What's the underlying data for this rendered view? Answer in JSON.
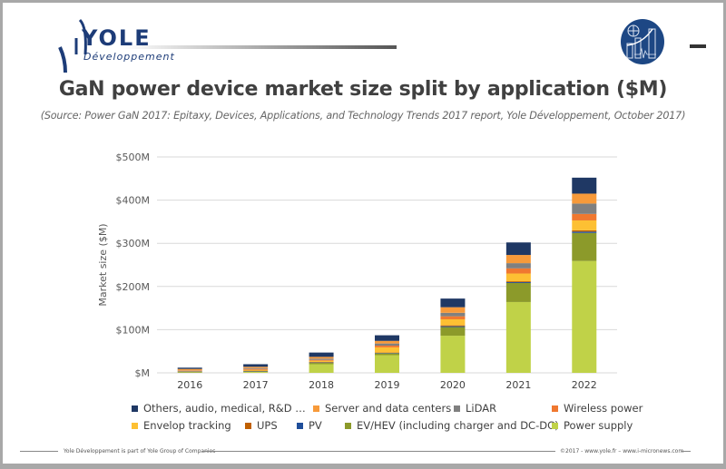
{
  "logo": {
    "name": "YOLE",
    "sub": "Développement"
  },
  "header": {
    "title": "GaN power device market size split by application ($M)",
    "subtitle": "(Source: Power GaN 2017: Epitaxy, Devices, Applications, and Technology Trends 2017 report, Yole Développement, October 2017)"
  },
  "footer": {
    "left": "Yole Développement is part of Yole Group of Companies",
    "right": "©2017 - www.yole.fr – www.i-micronews.com"
  },
  "chart_data": {
    "type": "bar",
    "stacked": true,
    "title": "GaN power device market size split by application ($M)",
    "ylabel": "Market size ($M)",
    "xlabel": "",
    "ylim": [
      0,
      500
    ],
    "yticks": [
      0,
      100,
      200,
      300,
      400,
      500
    ],
    "ytick_labels": [
      "$M",
      "$100M",
      "$200M",
      "$300M",
      "$400M",
      "$500M"
    ],
    "grid": true,
    "legend_position": "bottom",
    "categories": [
      "2016",
      "2017",
      "2018",
      "2019",
      "2020",
      "2021",
      "2022"
    ],
    "series": [
      {
        "name": "Power supply",
        "color": "#c0d248",
        "values": [
          1,
          2,
          20,
          41,
          86,
          164,
          259
        ]
      },
      {
        "name": "EV/HEV (including charger and DC-DC)",
        "color": "#8c9a2a",
        "values": [
          1,
          1,
          3,
          4,
          20,
          44,
          65
        ]
      },
      {
        "name": "PV",
        "color": "#1f4e9a",
        "values": [
          1,
          1,
          1,
          1,
          2,
          2,
          3
        ]
      },
      {
        "name": "UPS",
        "color": "#c06000",
        "values": [
          0.5,
          1,
          1,
          1,
          2,
          2,
          3
        ]
      },
      {
        "name": "Envelop tracking",
        "color": "#fdc033",
        "values": [
          1,
          2,
          3,
          12,
          14,
          18,
          23
        ]
      },
      {
        "name": "Wireless power",
        "color": "#f07830",
        "values": [
          1,
          2,
          2,
          4,
          7,
          12,
          15
        ]
      },
      {
        "name": "LiDAR",
        "color": "#808080",
        "values": [
          0.5,
          2,
          3,
          5,
          8,
          12,
          24
        ]
      },
      {
        "name": "Server and data centers",
        "color": "#f79a3a",
        "values": [
          3,
          3,
          4,
          6,
          13,
          19,
          23
        ]
      },
      {
        "name": "Others, audio, medical, R&D …",
        "color": "#1f3864",
        "values": [
          3,
          6,
          10,
          13,
          20,
          29,
          37
        ]
      }
    ]
  }
}
